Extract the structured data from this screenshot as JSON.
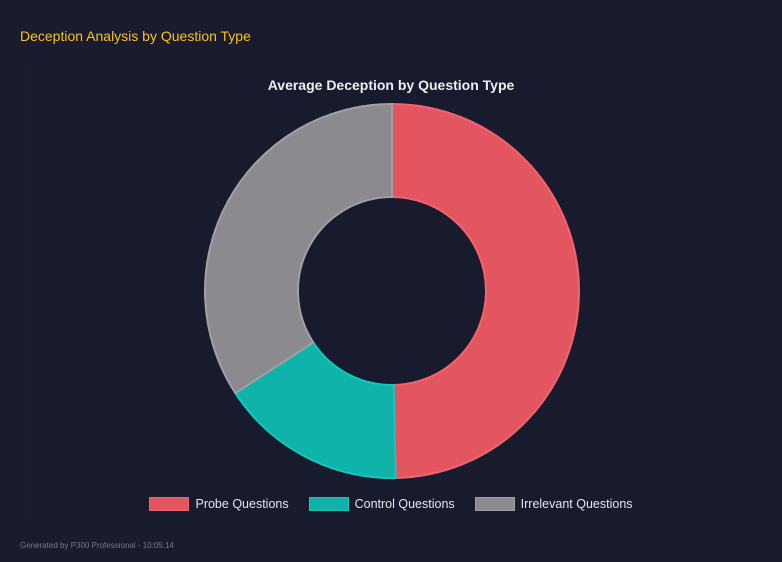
{
  "header": {
    "title": "Deception Analysis by Question Type"
  },
  "footer": {
    "text": "Generated by P300 Professional - 10:05:14"
  },
  "chart_data": {
    "type": "pie",
    "variant": "doughnut",
    "title": "Average Deception by Question Type",
    "categories": [
      "Probe Questions",
      "Control Questions",
      "Irrelevant Questions"
    ],
    "values": [
      49.7,
      16.1,
      34.2
    ],
    "colors": [
      "#e35660",
      "#0fb3aa",
      "#8a8a8f"
    ],
    "border_colors": [
      "#f0646e",
      "#14c8be",
      "#a0a0a5"
    ],
    "legend": "bottom"
  }
}
